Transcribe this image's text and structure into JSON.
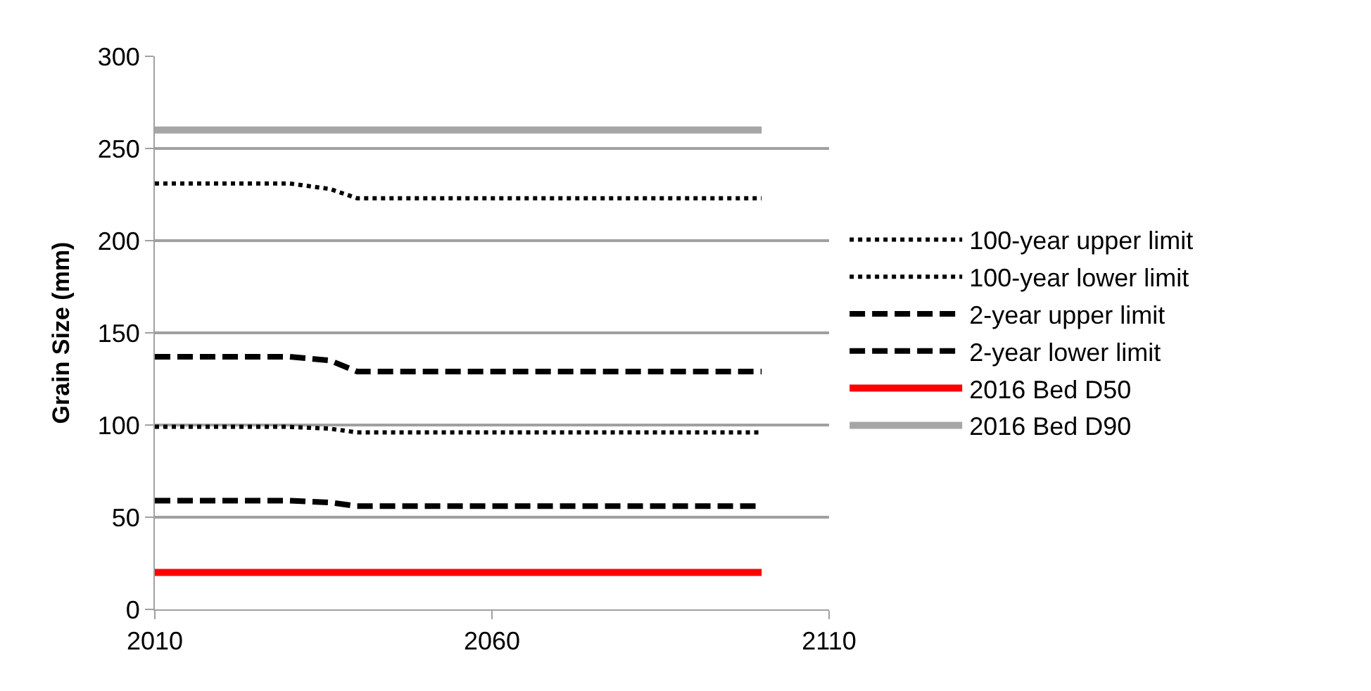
{
  "chart_data": {
    "type": "line",
    "ylabel": "Grain Size (mm)",
    "xlim": [
      2010,
      2110
    ],
    "xticks": [
      2010,
      2060,
      2110
    ],
    "ylim": [
      0,
      300
    ],
    "yticks": [
      0,
      50,
      100,
      150,
      200,
      250,
      300
    ],
    "grid": "y",
    "legend": "right",
    "marker": "none",
    "series": [
      {
        "name": "100-year upper limit",
        "color": "#000000",
        "line_style": "dotted",
        "x": [
          2010,
          2030,
          2036,
          2040,
          2100
        ],
        "values": [
          231,
          231,
          228,
          223,
          223
        ]
      },
      {
        "name": "100-year lower limit",
        "color": "#000000",
        "line_style": "dotted",
        "x": [
          2010,
          2030,
          2036,
          2040,
          2100
        ],
        "values": [
          99,
          99,
          98,
          96,
          96
        ]
      },
      {
        "name": "2-year upper limit",
        "color": "#000000",
        "line_style": "dashed",
        "x": [
          2010,
          2030,
          2036,
          2040,
          2100
        ],
        "values": [
          137,
          137,
          135,
          129,
          129
        ]
      },
      {
        "name": "2-year lower limit",
        "color": "#000000",
        "line_style": "dashed",
        "x": [
          2010,
          2030,
          2036,
          2040,
          2100
        ],
        "values": [
          59,
          59,
          58,
          56,
          56
        ]
      },
      {
        "name": "2016 Bed D50",
        "color": "#ff0000",
        "line_style": "solid",
        "x": [
          2010,
          2100
        ],
        "values": [
          20,
          20
        ]
      },
      {
        "name": "2016 Bed D90",
        "color": "#a6a6a6",
        "line_style": "solid",
        "x": [
          2010,
          2100
        ],
        "values": [
          260,
          260
        ]
      }
    ]
  }
}
